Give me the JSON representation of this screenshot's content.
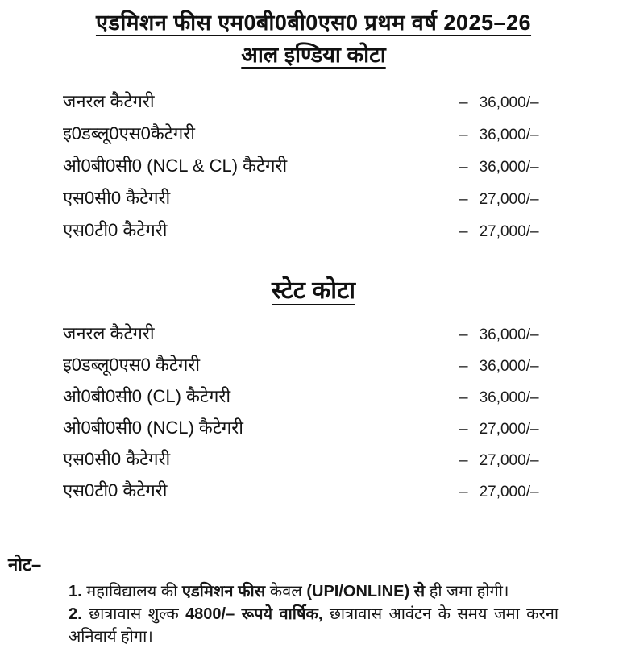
{
  "page": {
    "title": "एडमिशन फीस एम0बी0बी0एस0 प्रथम वर्ष 2025–26",
    "subtitle": "आल इण्डिया कोटा"
  },
  "amount_dash": "–",
  "all_india": {
    "rows": [
      {
        "label": "जनरल कैटेगरी",
        "amount": "36,000/–"
      },
      {
        "label": "इ0डब्लू0एस0कैटेगरी",
        "amount": "36,000/–"
      },
      {
        "label": "ओ0बी0सी0 (NCL & CL) कैटेगरी",
        "amount": "36,000/–"
      },
      {
        "label": "एस0सी0 कैटेगरी",
        "amount": "27,000/–"
      },
      {
        "label": "एस0टी0 कैटेगरी",
        "amount": "27,000/–"
      }
    ]
  },
  "state": {
    "heading": "स्टेट कोटा",
    "rows": [
      {
        "label": "जनरल कैटेगरी",
        "amount": "36,000/–"
      },
      {
        "label": "इ0डब्लू0एस0 कैटेगरी",
        "amount": "36,000/–"
      },
      {
        "label": "ओ0बी0सी0 (CL) कैटेगरी",
        "amount": "36,000/–"
      },
      {
        "label": "ओ0बी0सी0 (NCL) कैटेगरी",
        "amount": "27,000/–"
      },
      {
        "label": "एस0सी0 कैटेगरी",
        "amount": "27,000/–"
      },
      {
        "label": "एस0टी0 कैटेगरी",
        "amount": "27,000/–"
      }
    ]
  },
  "note": {
    "heading": "नोट–",
    "item1": {
      "num": "1.",
      "t1": " महाविद्यालय की ",
      "b1": "एडमिशन फीस",
      "t2": " केवल ",
      "b2": "(UPI/ONLINE) से",
      "t3": " ही जमा होगी।"
    },
    "item2": {
      "num": "2.",
      "t1": " छात्रावास शुल्क ",
      "b1": "4800/– रूपये वार्षिक,",
      "t2": " छात्रावास आवंटन के समय जमा करना अनिवार्य होगा।"
    }
  }
}
